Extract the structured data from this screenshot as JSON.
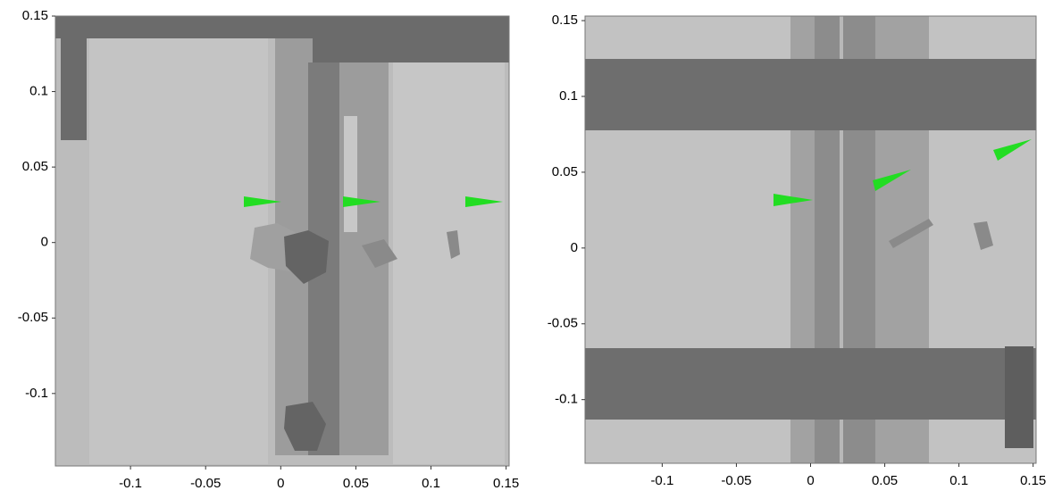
{
  "chart_data": [
    {
      "type": "image",
      "xlim": [
        -0.15,
        0.152
      ],
      "ylim": [
        -0.148,
        0.15
      ],
      "xticks": [
        -0.1,
        -0.05,
        0,
        0.05,
        0.1,
        0.15
      ],
      "yticks": [
        -0.1,
        -0.05,
        0,
        0.05,
        0.1,
        0.15
      ]
    },
    {
      "type": "image",
      "xlim": [
        -0.152,
        0.152
      ],
      "ylim": [
        -0.142,
        0.153
      ],
      "xticks": [
        -0.1,
        -0.05,
        0,
        0.05,
        0.1,
        0.15
      ],
      "yticks": [
        -0.1,
        -0.05,
        0,
        0.05,
        0.1,
        0.15
      ]
    }
  ]
}
